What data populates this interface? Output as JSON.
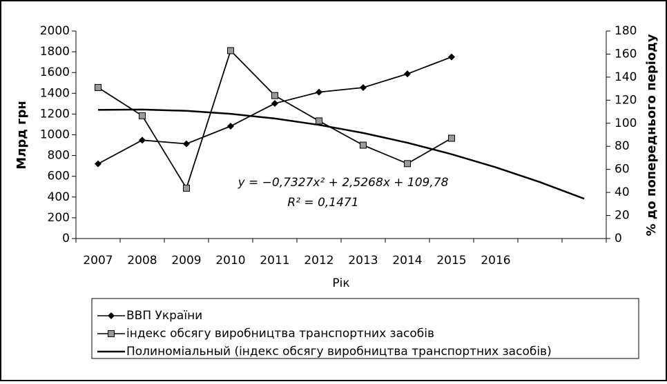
{
  "chart_data": {
    "type": "line",
    "x_label": "Рік",
    "y_label": "Млрд грн",
    "y2_label": "% до попереднього періоду",
    "annotations": [
      "y = −0,7327x² + 2,5268x + 109,78",
      "R² = 0,1471"
    ],
    "categories": [
      "2007",
      "2008",
      "2009",
      "2010",
      "2011",
      "2012",
      "2013",
      "2014",
      "2015",
      "2016",
      null,
      null
    ],
    "ylim": [
      0,
      2000
    ],
    "yticks": [
      0,
      200,
      400,
      600,
      800,
      1000,
      1200,
      1400,
      1600,
      1800,
      2000
    ],
    "y2lim": [
      0,
      180
    ],
    "y2ticks": [
      0,
      20,
      40,
      60,
      80,
      100,
      120,
      140,
      160,
      180
    ],
    "legend": "bottom",
    "series": [
      {
        "name": "ВВП України",
        "color": "#000000",
        "marker": "diamond",
        "values": [
          720,
          948,
          913,
          1083,
          1302,
          1411,
          1455,
          1587,
          1750,
          null,
          null,
          null
        ]
      },
      {
        "name": "індекс обсягу виробництва транспортних засобів",
        "color": "#000000",
        "marker": "square",
        "axis": "y2",
        "values": [
          131,
          106.5,
          43.7,
          163,
          124,
          102,
          81,
          65,
          87,
          null,
          null,
          null
        ]
      },
      {
        "name": "Полиноміальный (індекс обсягу виробництва транспортних засобів)",
        "color": "#000000",
        "marker": "none",
        "axis": "y2",
        "values": [
          111.57,
          111.9,
          110.77,
          108.16,
          104.1,
          98.56,
          91.57,
          83.1,
          73.17,
          61.78,
          48.92,
          34.59
        ]
      }
    ]
  }
}
